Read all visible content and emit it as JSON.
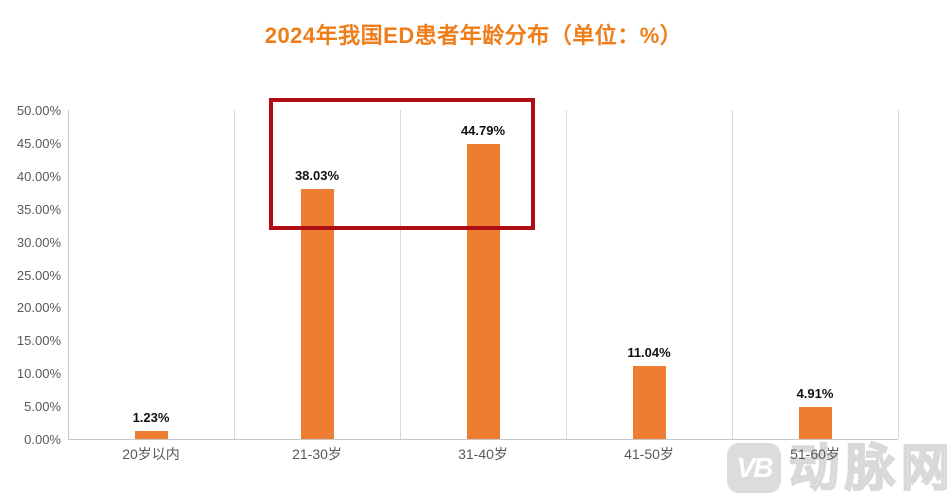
{
  "title": "2024年我国ED患者年龄分布（单位：%）",
  "colors": {
    "title": "#ee7d1a",
    "bar": "#ed7d31",
    "highlight_box": "#ae0e13",
    "axis_text": "#595959",
    "data_label_text": "#111111",
    "gridline": "#d9d9d9",
    "watermark": "#dcdcdc"
  },
  "chart_data": {
    "type": "bar",
    "title": "2024年我国ED患者年龄分布（单位：%）",
    "categories": [
      "20岁以内",
      "21-30岁",
      "31-40岁",
      "41-50岁",
      "51-60岁"
    ],
    "values": [
      1.23,
      38.03,
      44.79,
      11.04,
      4.91
    ],
    "data_labels": [
      "1.23%",
      "38.03%",
      "44.79%",
      "11.04%",
      "4.91%"
    ],
    "xlabel": "",
    "ylabel": "",
    "ylim": [
      0,
      50
    ],
    "y_tick_step": 5,
    "y_tick_labels": [
      "0.00%",
      "5.00%",
      "10.00%",
      "15.00%",
      "20.00%",
      "25.00%",
      "30.00%",
      "35.00%",
      "40.00%",
      "45.00%",
      "50.00%"
    ],
    "grid": "vertical-category-separators-only",
    "legend": "none",
    "annotation": {
      "type": "highlight-box",
      "over_categories": [
        "21-30岁",
        "31-40岁"
      ]
    }
  },
  "watermark": {
    "logo": "VB",
    "text": "动脉网"
  }
}
